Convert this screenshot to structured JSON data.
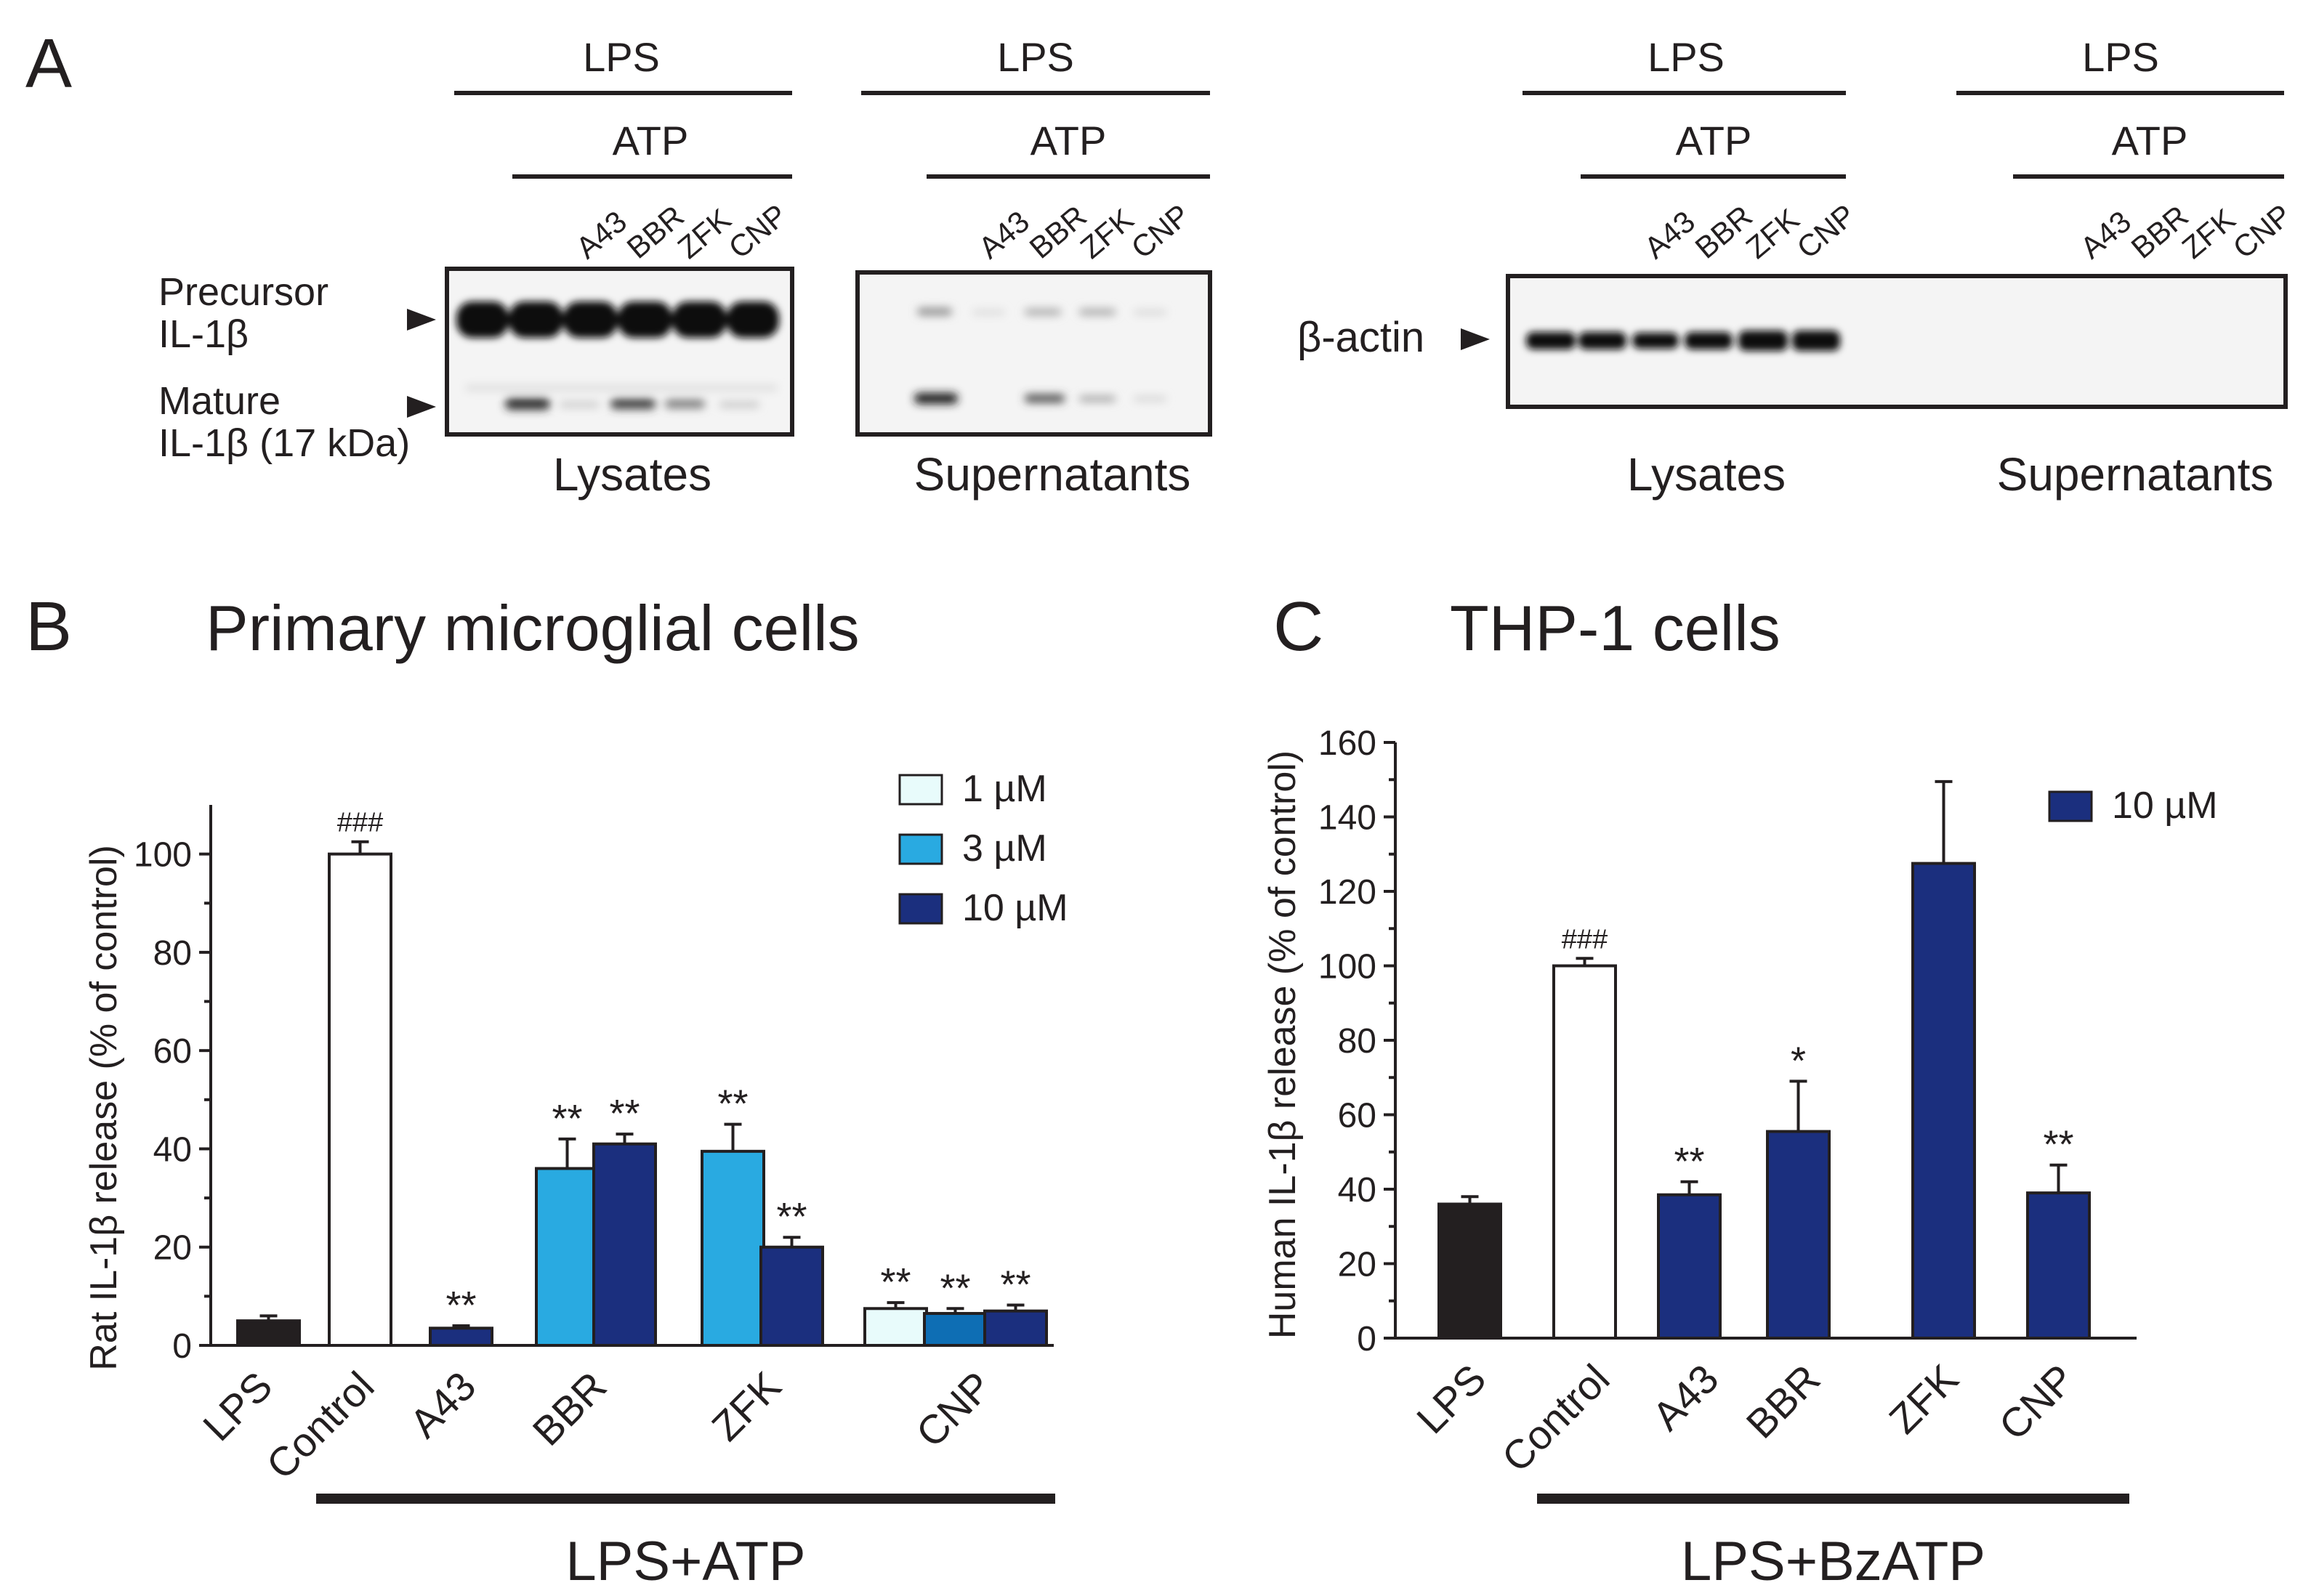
{
  "panel_a": {
    "letter": "A",
    "left": {
      "lps": "LPS",
      "atp": "ATP",
      "lanes": [
        "A43",
        "BBR",
        "ZFK",
        "CNP"
      ],
      "precursor_label": [
        "Precursor",
        "IL-1β"
      ],
      "mature_label": [
        "Mature",
        "IL-1β (17 kDa)"
      ],
      "lysates_label": "Lysates",
      "supernatants_label": "Supernatants"
    },
    "right": {
      "lps": "LPS",
      "atp": "ATP",
      "lanes": [
        "A43",
        "BBR",
        "ZFK",
        "CNP"
      ],
      "actin_label": "β-actin",
      "lysates_label": "Lysates",
      "supernatants_label": "Supernatants"
    },
    "colors": {
      "band": "#0d0d0d",
      "membrane": "#f4f4f4",
      "arrow": "#231f20"
    }
  },
  "chart_data": [
    {
      "type": "bar",
      "panel_letter": "B",
      "title": "Primary microglial cells",
      "ylabel": "Rat IL-1β release (% of control)",
      "ylim": [
        0,
        110
      ],
      "yticks": [
        0,
        20,
        40,
        60,
        80,
        100
      ],
      "categories": [
        "LPS",
        "Control",
        "A43",
        "BBR",
        "ZFK",
        "CNP"
      ],
      "group_label": "LPS+ATP",
      "legend": [
        {
          "label": "1 µM",
          "color": "#e8fbfb"
        },
        {
          "label": "3 µM",
          "color": "#29aae1"
        },
        {
          "label": "10 µM",
          "color": "#1b2f7e"
        }
      ],
      "bars": [
        {
          "category": "LPS",
          "series": "",
          "value": 5,
          "error": 1,
          "color": "#231f20",
          "annotation": ""
        },
        {
          "category": "Control",
          "series": "",
          "value": 100,
          "error": 2.5,
          "color": "#ffffff",
          "annotation": "###"
        },
        {
          "category": "A43",
          "series": "10 µM",
          "value": 3.5,
          "error": 0.5,
          "color": "#1b2f7e",
          "annotation": "**"
        },
        {
          "category": "BBR",
          "series": "3 µM",
          "value": 36,
          "error": 6,
          "color": "#29aae1",
          "annotation": "**"
        },
        {
          "category": "BBR",
          "series": "10 µM",
          "value": 41,
          "error": 2,
          "color": "#1b2f7e",
          "annotation": "**"
        },
        {
          "category": "ZFK",
          "series": "3 µM",
          "value": 39.5,
          "error": 5.5,
          "color": "#29aae1",
          "annotation": "**"
        },
        {
          "category": "ZFK",
          "series": "10 µM",
          "value": 20,
          "error": 2,
          "color": "#1b2f7e",
          "annotation": "**"
        },
        {
          "category": "CNP",
          "series": "1 µM",
          "value": 7.5,
          "error": 1.2,
          "color": "#e8fbfb",
          "annotation": "**"
        },
        {
          "category": "CNP",
          "series": "3 µM",
          "value": 6.5,
          "error": 1,
          "color": "#0e6eb4",
          "annotation": "**"
        },
        {
          "category": "CNP",
          "series": "10 µM",
          "value": 7,
          "error": 1.2,
          "color": "#1b2f7e",
          "annotation": "**"
        }
      ]
    },
    {
      "type": "bar",
      "panel_letter": "C",
      "title": "THP-1 cells",
      "ylabel": "Human IL-1β release (% of control)",
      "ylim": [
        0,
        160
      ],
      "yticks": [
        0,
        20,
        40,
        60,
        80,
        100,
        120,
        140,
        160
      ],
      "categories": [
        "LPS",
        "Control",
        "A43",
        "BBR",
        "ZFK",
        "CNP"
      ],
      "group_label": "LPS+BzATP",
      "legend": [
        {
          "label": "10 µM",
          "color": "#1b2f7e"
        }
      ],
      "bars": [
        {
          "category": "LPS",
          "series": "",
          "value": 36,
          "error": 2,
          "color": "#231f20",
          "annotation": ""
        },
        {
          "category": "Control",
          "series": "",
          "value": 100,
          "error": 2,
          "color": "#ffffff",
          "annotation": "###"
        },
        {
          "category": "A43",
          "series": "10 µM",
          "value": 38.5,
          "error": 3.5,
          "color": "#1b2f7e",
          "annotation": "**"
        },
        {
          "category": "BBR",
          "series": "10 µM",
          "value": 55.5,
          "error": 13.5,
          "color": "#1b2f7e",
          "annotation": "*"
        },
        {
          "category": "ZFK",
          "series": "10 µM",
          "value": 127.5,
          "error": 22,
          "color": "#1b2f7e",
          "annotation": ""
        },
        {
          "category": "CNP",
          "series": "10 µM",
          "value": 39,
          "error": 7.5,
          "color": "#1b2f7e",
          "annotation": "**"
        }
      ]
    }
  ]
}
